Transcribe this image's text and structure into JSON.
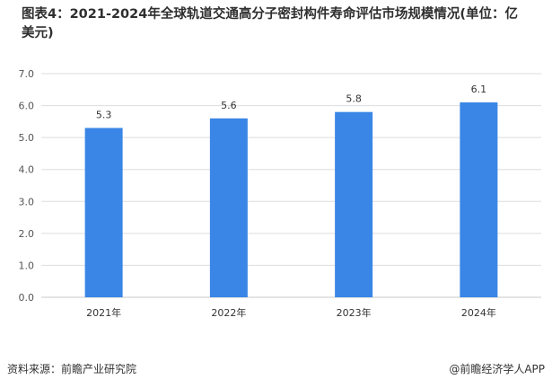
{
  "title": "图表4：2021-2024年全球轨道交通高分子密封构件寿命评估市场规模情况(单位：亿美元)",
  "chart_data": {
    "type": "bar",
    "categories": [
      "2021年",
      "2022年",
      "2023年",
      "2024年"
    ],
    "values": [
      5.3,
      5.6,
      5.8,
      6.1
    ],
    "data_labels": [
      "5.3",
      "5.6",
      "5.8",
      "6.1"
    ],
    "y_ticks": [
      "0.0",
      "1.0",
      "2.0",
      "3.0",
      "4.0",
      "5.0",
      "6.0",
      "7.0"
    ],
    "ylim": [
      0,
      7
    ],
    "grid": true,
    "bar_color": "#3a86e6",
    "grid_color": "#dddddd"
  },
  "footer": {
    "source": "资料来源：前瞻产业研究院",
    "brand": "@前瞻经济学人APP"
  }
}
